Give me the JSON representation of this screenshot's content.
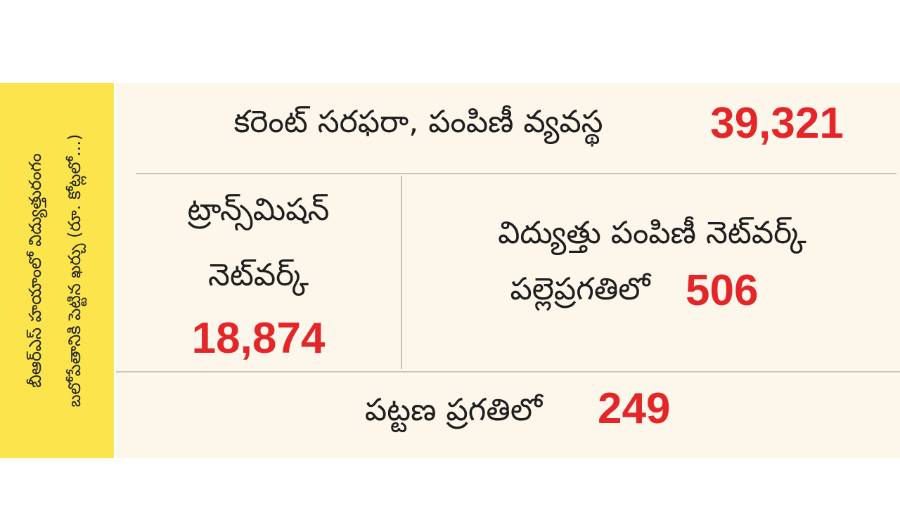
{
  "sidebar": {
    "lines": [
      "బీఆర్ఎస్ హయాంలో విద్యుత్తురంగం",
      "బలోపేతానికి పెట్టిన ఖర్చు (రూ. కోట్లలో...)"
    ]
  },
  "items": [
    {
      "label": [
        "కరెంట్ సరఫరా, పంపిణీ వ్యవస్థ"
      ],
      "amount": "39,321"
    },
    {
      "label": [
        "ట్రాన్స్‌మిషన్",
        "నెట్‌వర్క్"
      ],
      "amount": "18,874"
    },
    {
      "label": [
        "విద్యుత్తు పంపిణీ నెట్‌వర్క్",
        "పల్లెప్రగతిలో"
      ],
      "amount": "506"
    },
    {
      "label": [
        "పట్టణ ప్రగతిలో"
      ],
      "amount": "249"
    }
  ]
}
